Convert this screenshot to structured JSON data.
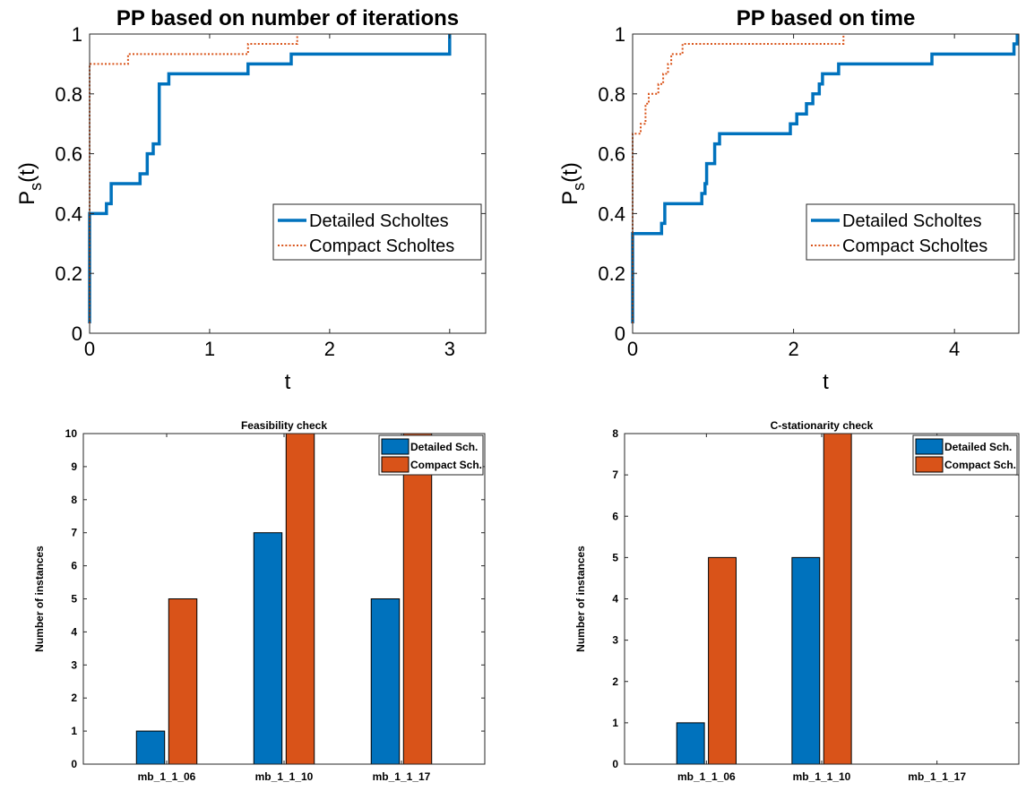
{
  "colors": {
    "series1": "#0072BD",
    "series2": "#D95319",
    "axis": "#262626"
  },
  "chart_data": [
    {
      "type": "line",
      "title": "PP based on number of iterations",
      "xlabel": "t",
      "ylabel_main": "P",
      "ylabel_sub": "s",
      "ylabel_tail": "(t)",
      "xlim": [
        0,
        3.3
      ],
      "ylim": [
        0,
        1
      ],
      "xticks": [
        0,
        1,
        2,
        3
      ],
      "yticks": [
        0,
        0.2,
        0.4,
        0.6,
        0.8,
        1
      ],
      "ytick_labels": [
        "0",
        "0.2",
        "0.4",
        "0.6",
        "0.8",
        "1"
      ],
      "grid": false,
      "legend": "right",
      "series": [
        {
          "name": "Detailed Scholtes",
          "style": "solid",
          "points": [
            [
              0,
              0.033
            ],
            [
              0,
              0.4
            ],
            [
              0.14,
              0.4
            ],
            [
              0.14,
              0.433
            ],
            [
              0.18,
              0.433
            ],
            [
              0.18,
              0.5
            ],
            [
              0.42,
              0.5
            ],
            [
              0.42,
              0.533
            ],
            [
              0.48,
              0.533
            ],
            [
              0.48,
              0.6
            ],
            [
              0.53,
              0.6
            ],
            [
              0.53,
              0.633
            ],
            [
              0.58,
              0.633
            ],
            [
              0.58,
              0.833
            ],
            [
              0.66,
              0.833
            ],
            [
              0.66,
              0.867
            ],
            [
              1.32,
              0.867
            ],
            [
              1.32,
              0.9
            ],
            [
              1.68,
              0.9
            ],
            [
              1.68,
              0.933
            ],
            [
              3.0,
              0.933
            ],
            [
              3.0,
              1.0
            ]
          ]
        },
        {
          "name": "Compact Scholtes",
          "style": "dotted",
          "points": [
            [
              0,
              0.033
            ],
            [
              0,
              0.9
            ],
            [
              0.13,
              0.9
            ],
            [
              0.13,
              0.9
            ],
            [
              0.32,
              0.9
            ],
            [
              0.32,
              0.933
            ],
            [
              1.32,
              0.933
            ],
            [
              1.32,
              0.967
            ],
            [
              1.73,
              0.967
            ],
            [
              1.73,
              1.0
            ]
          ]
        }
      ]
    },
    {
      "type": "line",
      "title": "PP based on time",
      "xlabel": "t",
      "ylabel_main": "P",
      "ylabel_sub": "s",
      "ylabel_tail": "(t)",
      "xlim": [
        0,
        4.8
      ],
      "ylim": [
        0,
        1
      ],
      "xticks": [
        0,
        2,
        4
      ],
      "yticks": [
        0,
        0.2,
        0.4,
        0.6,
        0.8,
        1
      ],
      "ytick_labels": [
        "0",
        "0.2",
        "0.4",
        "0.6",
        "0.8",
        "1"
      ],
      "grid": false,
      "legend": "right",
      "series": [
        {
          "name": "Detailed Scholtes",
          "style": "solid",
          "points": [
            [
              0,
              0.033
            ],
            [
              0,
              0.333
            ],
            [
              0.36,
              0.333
            ],
            [
              0.36,
              0.367
            ],
            [
              0.4,
              0.367
            ],
            [
              0.4,
              0.433
            ],
            [
              0.86,
              0.433
            ],
            [
              0.86,
              0.467
            ],
            [
              0.9,
              0.467
            ],
            [
              0.9,
              0.5
            ],
            [
              0.92,
              0.5
            ],
            [
              0.92,
              0.567
            ],
            [
              1.02,
              0.567
            ],
            [
              1.02,
              0.633
            ],
            [
              1.08,
              0.633
            ],
            [
              1.08,
              0.667
            ],
            [
              1.96,
              0.667
            ],
            [
              1.96,
              0.7
            ],
            [
              2.04,
              0.7
            ],
            [
              2.04,
              0.733
            ],
            [
              2.16,
              0.733
            ],
            [
              2.16,
              0.767
            ],
            [
              2.24,
              0.767
            ],
            [
              2.24,
              0.8
            ],
            [
              2.32,
              0.8
            ],
            [
              2.32,
              0.833
            ],
            [
              2.36,
              0.833
            ],
            [
              2.36,
              0.867
            ],
            [
              2.56,
              0.867
            ],
            [
              2.56,
              0.9
            ],
            [
              3.72,
              0.9
            ],
            [
              3.72,
              0.933
            ],
            [
              4.74,
              0.933
            ],
            [
              4.74,
              0.967
            ],
            [
              4.78,
              0.967
            ],
            [
              4.78,
              1.0
            ]
          ]
        },
        {
          "name": "Compact Scholtes",
          "style": "dotted",
          "points": [
            [
              0,
              0.033
            ],
            [
              0,
              0.667
            ],
            [
              0.1,
              0.667
            ],
            [
              0.1,
              0.7
            ],
            [
              0.16,
              0.7
            ],
            [
              0.16,
              0.767
            ],
            [
              0.2,
              0.767
            ],
            [
              0.2,
              0.8
            ],
            [
              0.32,
              0.8
            ],
            [
              0.32,
              0.833
            ],
            [
              0.38,
              0.833
            ],
            [
              0.38,
              0.867
            ],
            [
              0.44,
              0.867
            ],
            [
              0.44,
              0.9
            ],
            [
              0.48,
              0.9
            ],
            [
              0.48,
              0.933
            ],
            [
              0.62,
              0.933
            ],
            [
              0.62,
              0.967
            ],
            [
              2.62,
              0.967
            ],
            [
              2.62,
              1.0
            ]
          ]
        }
      ]
    },
    {
      "type": "bar",
      "title": "Feasibility check",
      "xlabel": "",
      "ylabel": "Number of instances",
      "categories": [
        "mb_1_1_06",
        "mb_1_1_10",
        "mb_1_1_17"
      ],
      "ylim": [
        0,
        10
      ],
      "yticks": [
        0,
        1,
        2,
        3,
        4,
        5,
        6,
        7,
        8,
        9,
        10
      ],
      "grid": false,
      "legend": "top-right",
      "series": [
        {
          "name": "Detailed Sch.",
          "values": [
            1,
            7,
            5
          ]
        },
        {
          "name": "Compact Sch.",
          "values": [
            5,
            10,
            10
          ]
        }
      ]
    },
    {
      "type": "bar",
      "title": "C-stationarity check",
      "xlabel": "",
      "ylabel": "Number of instances",
      "categories": [
        "mb_1_1_06",
        "mb_1_1_10",
        "mb_1_1_17"
      ],
      "ylim": [
        0,
        8
      ],
      "yticks": [
        0,
        1,
        2,
        3,
        4,
        5,
        6,
        7,
        8
      ],
      "grid": false,
      "legend": "top-right",
      "series": [
        {
          "name": "Detailed Sch.",
          "values": [
            1,
            5,
            0
          ]
        },
        {
          "name": "Compact Sch.",
          "values": [
            5,
            8,
            0
          ]
        }
      ]
    }
  ]
}
